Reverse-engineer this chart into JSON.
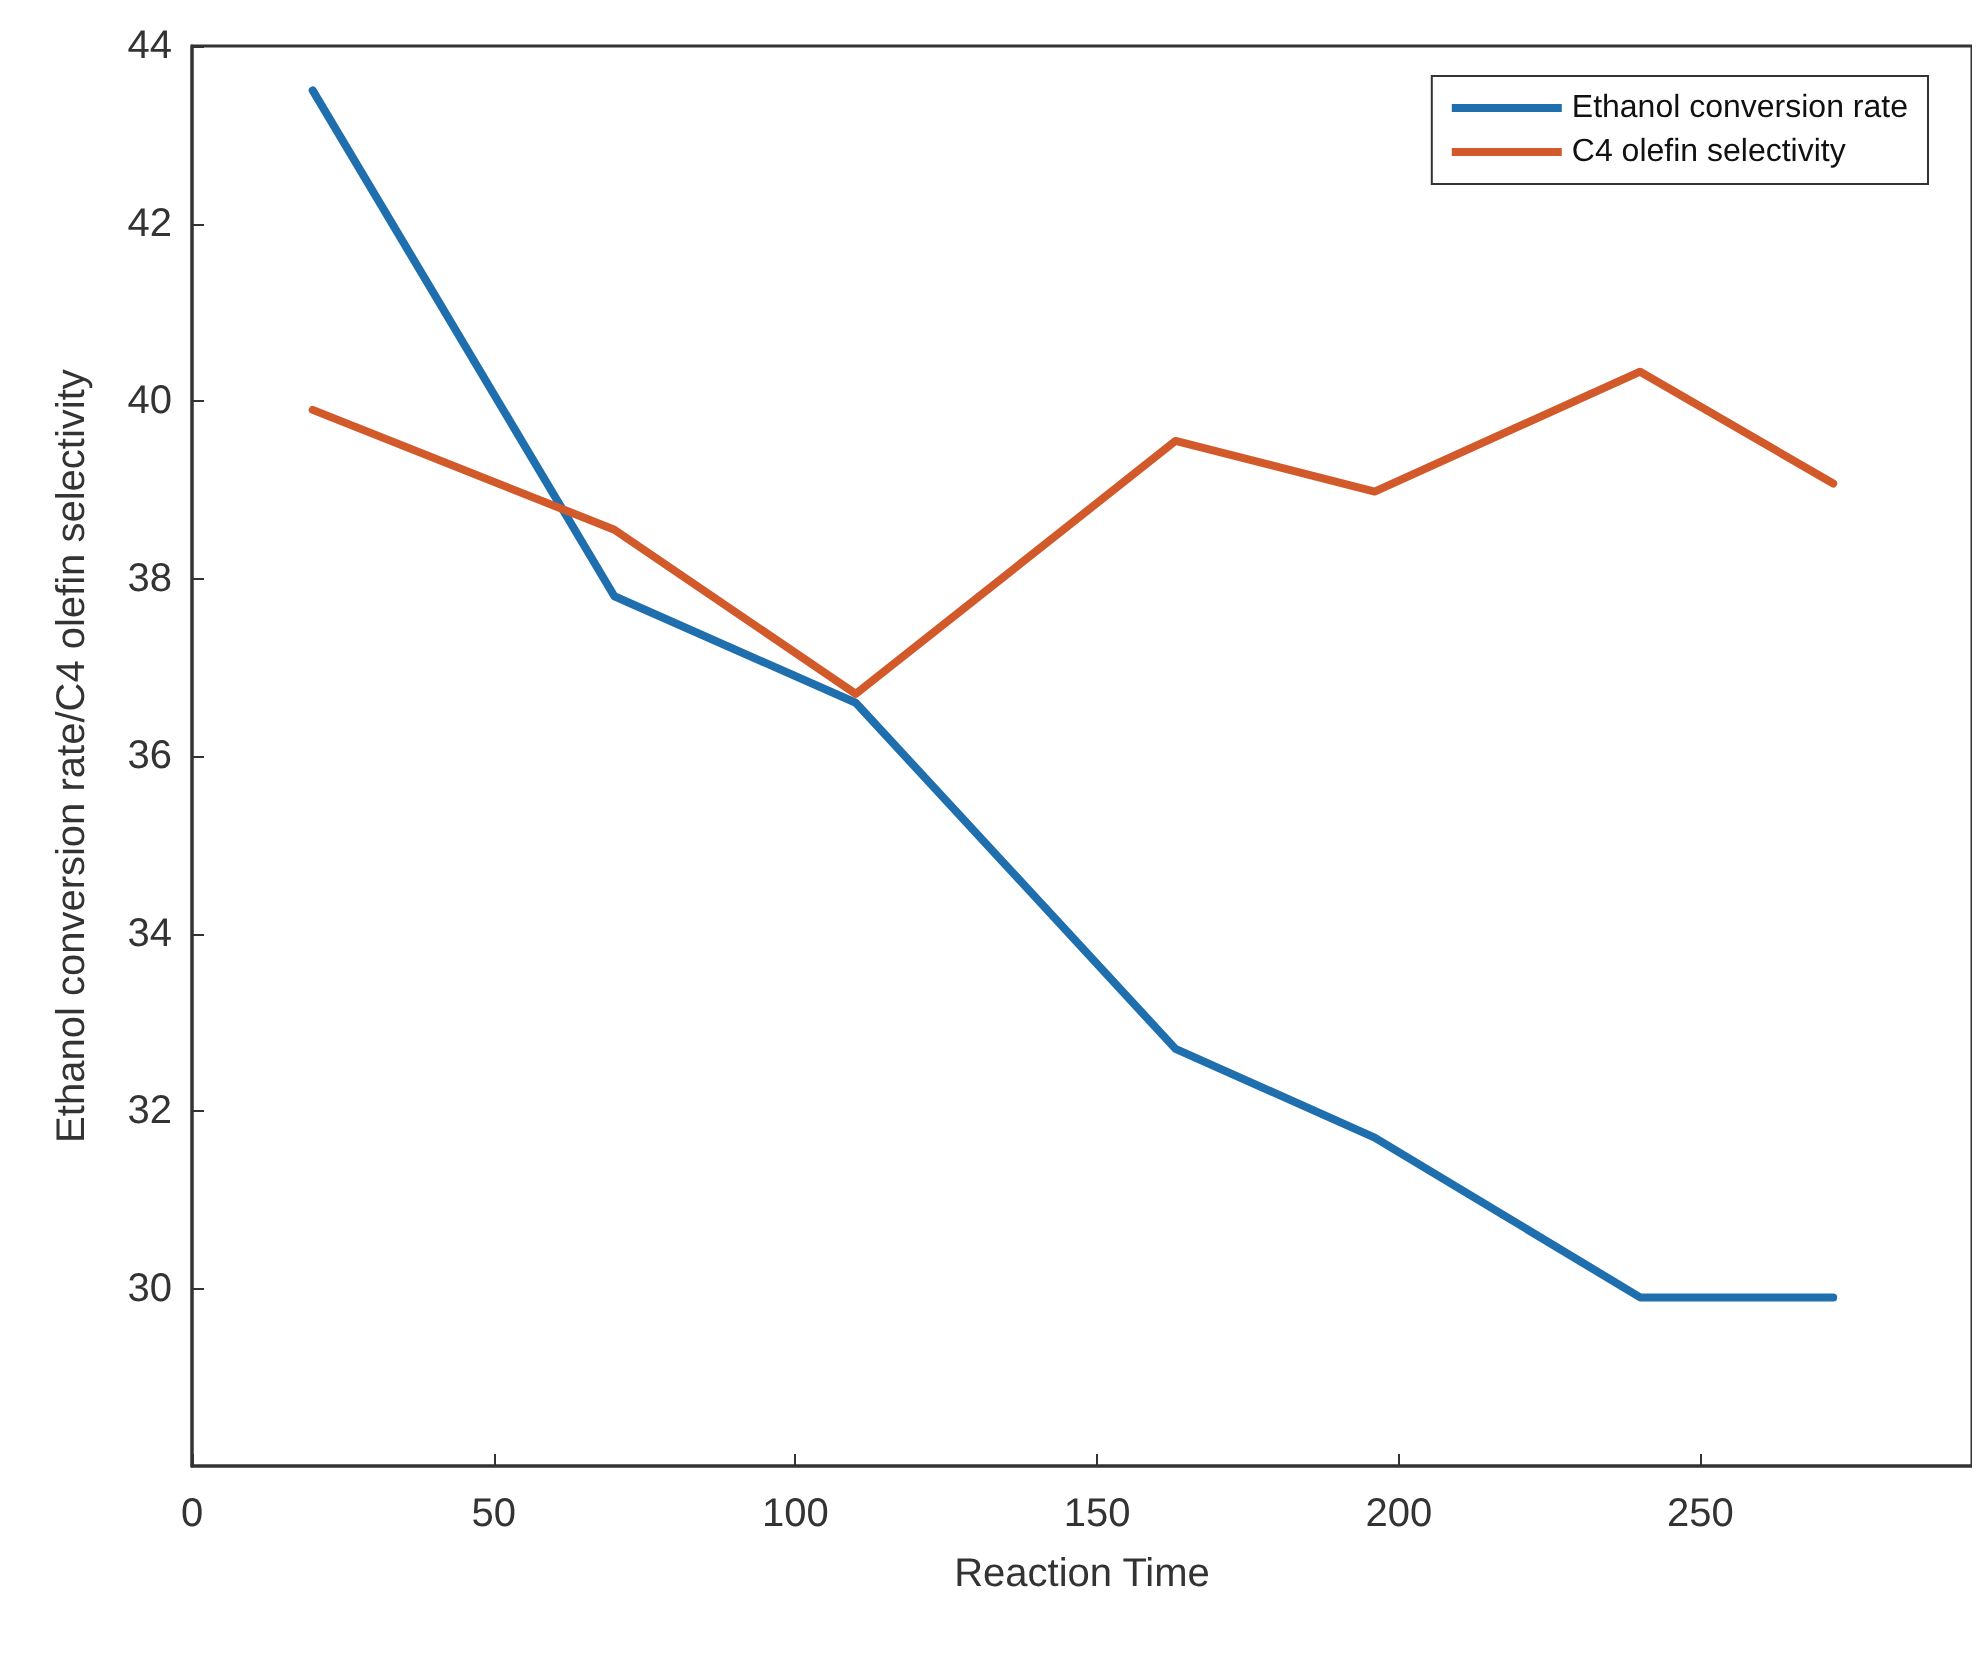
{
  "chart_data": {
    "type": "line",
    "xlabel": "Reaction Time",
    "ylabel": "Ethanol conversion rate/C4 olefin selectivity",
    "x": [
      20,
      70,
      110,
      163,
      196,
      240,
      272
    ],
    "series": [
      {
        "name": "Ethanol conversion rate",
        "color": "#1f6fae",
        "values": [
          43.5,
          37.8,
          36.6,
          32.7,
          31.7,
          29.9,
          29.9
        ]
      },
      {
        "name": "C4 olefin selectivity",
        "color": "#d2592a",
        "values": [
          39.9,
          38.55,
          36.7,
          39.55,
          38.98,
          40.33,
          39.07
        ]
      }
    ],
    "xlim": [
      0,
      295
    ],
    "xticks": [
      0,
      50,
      100,
      150,
      200,
      250
    ],
    "ylim": [
      28,
      44
    ],
    "yticks": [
      30,
      32,
      34,
      36,
      38,
      40,
      42,
      44
    ],
    "grid": false,
    "legend": "top right",
    "marker": "none",
    "line_style": "solid"
  }
}
